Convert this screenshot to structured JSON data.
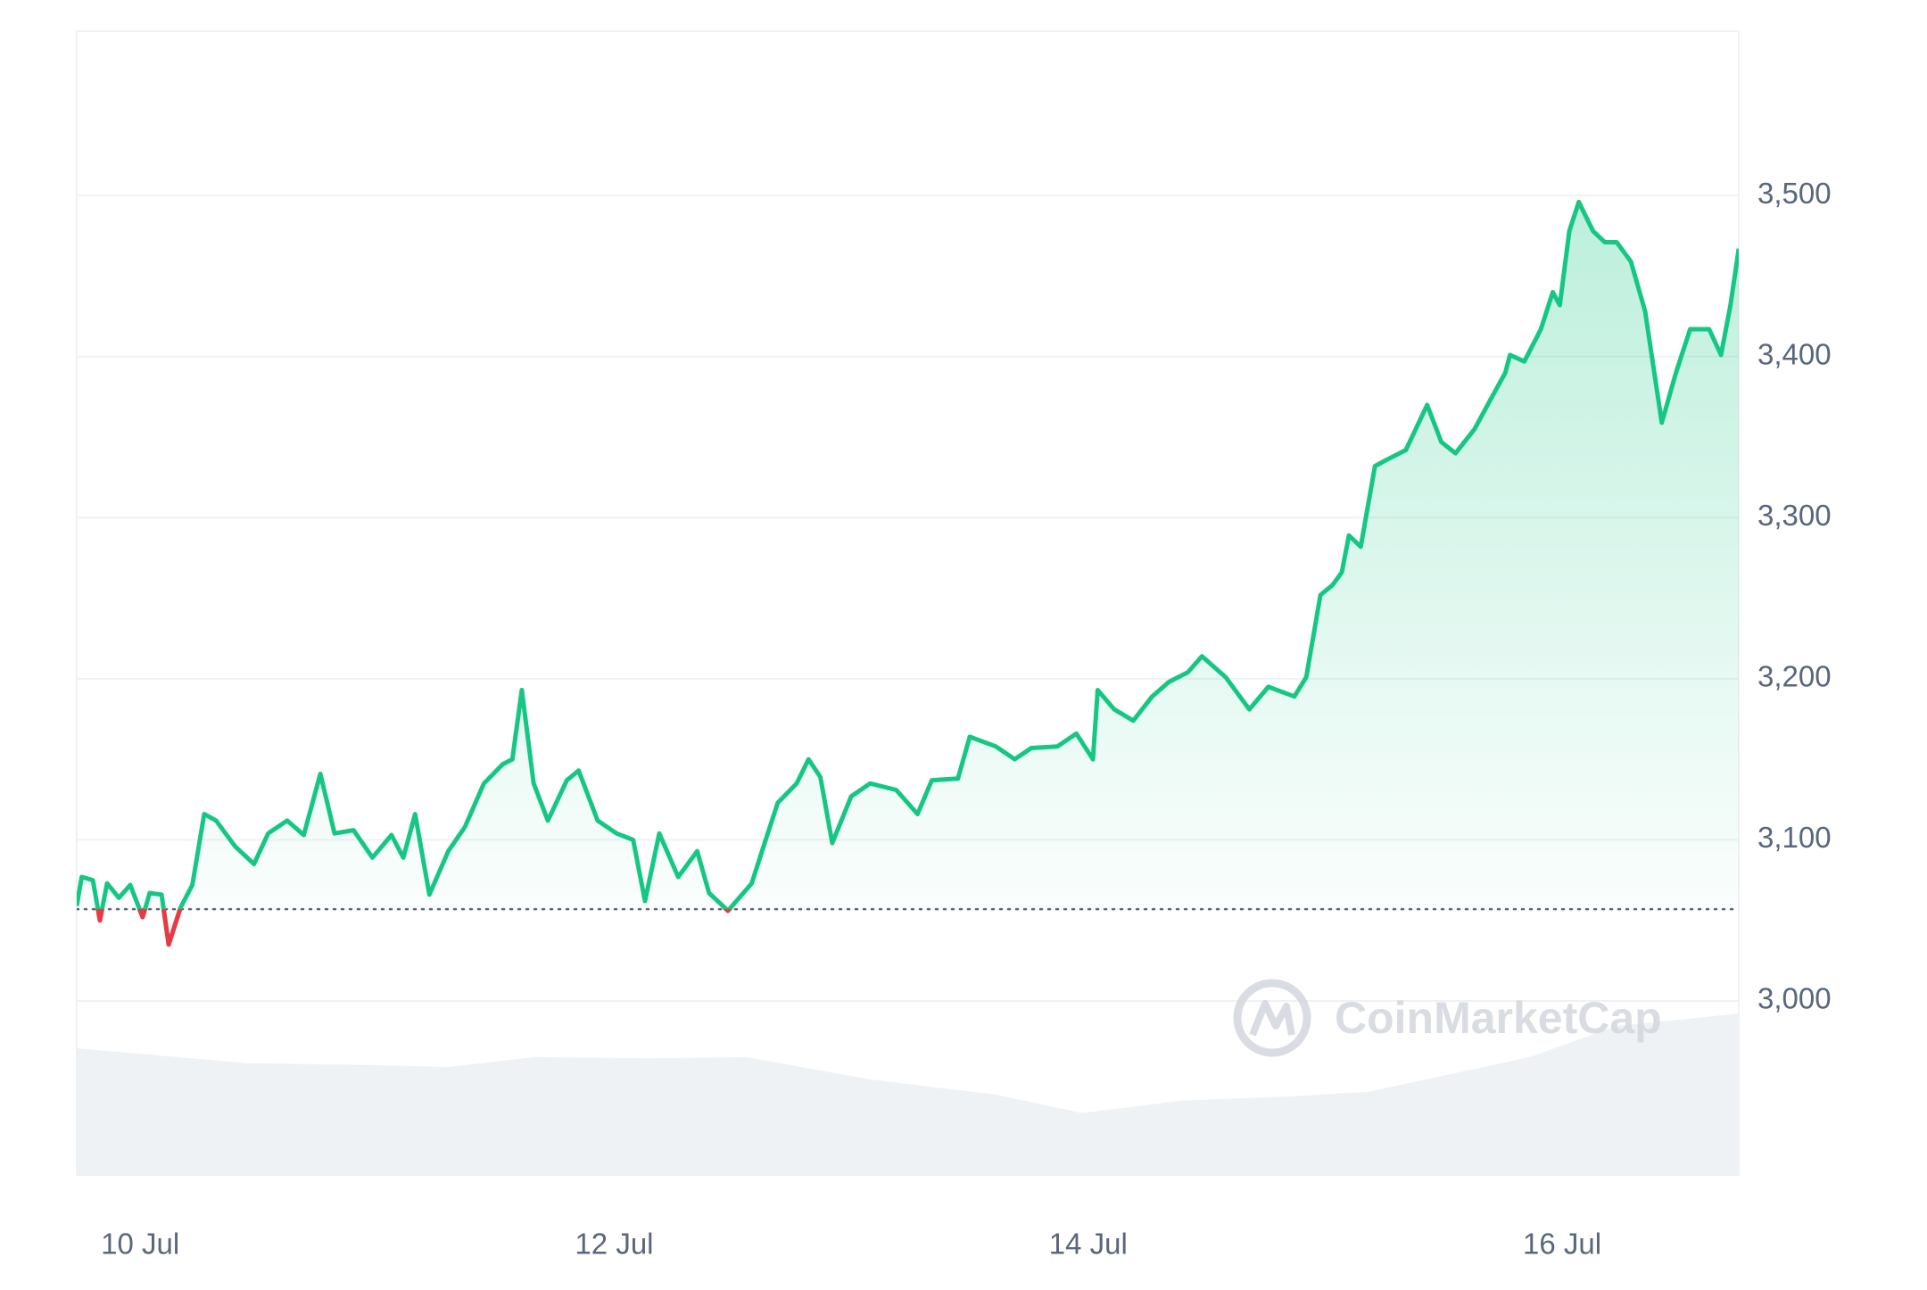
{
  "chart_data": {
    "type": "line",
    "watermark": "CoinMarketCap",
    "x": [
      9.732,
      9.753,
      9.8,
      9.83,
      9.86,
      9.91,
      9.958,
      10.01,
      10.04,
      10.09,
      10.12,
      10.17,
      10.22,
      10.27,
      10.32,
      10.4,
      10.48,
      10.54,
      10.62,
      10.69,
      10.76,
      10.82,
      10.9,
      10.98,
      11.06,
      11.11,
      11.16,
      11.22,
      11.3,
      11.37,
      11.45,
      11.53,
      11.57,
      11.61,
      11.66,
      11.72,
      11.8,
      11.85,
      11.93,
      12.01,
      12.08,
      12.13,
      12.19,
      12.27,
      12.35,
      12.4,
      12.48,
      12.58,
      12.63,
      12.69,
      12.77,
      12.82,
      12.87,
      12.92,
      13.0,
      13.08,
      13.19,
      13.28,
      13.34,
      13.45,
      13.5,
      13.61,
      13.69,
      13.76,
      13.87,
      13.95,
      14.02,
      14.04,
      14.11,
      14.19,
      14.27,
      14.34,
      14.42,
      14.48,
      14.58,
      14.68,
      14.76,
      14.87,
      14.92,
      14.98,
      15.03,
      15.07,
      15.1,
      15.15,
      15.21,
      15.26,
      15.34,
      15.43,
      15.49,
      15.55,
      15.63,
      15.7,
      15.76,
      15.78,
      15.84,
      15.91,
      15.96,
      15.99,
      16.03,
      16.07,
      16.13,
      16.18,
      16.23,
      16.29,
      16.35,
      16.42,
      16.48,
      16.54,
      16.62,
      16.67,
      16.71,
      16.745
    ],
    "series": [
      {
        "color": "#16c784",
        "down_color": "#ea3943",
        "values": [
          3059,
          3077,
          3075,
          3050,
          3073,
          3064,
          3072,
          3052,
          3067,
          3066,
          3035,
          3058,
          3072,
          3116,
          3112,
          3096,
          3085,
          3104,
          3112,
          3103,
          3141,
          3104,
          3106,
          3089,
          3103,
          3089,
          3116,
          3066,
          3093,
          3108,
          3135,
          3147,
          3150,
          3193,
          3135,
          3112,
          3137,
          3143,
          3112,
          3104,
          3100,
          3062,
          3104,
          3077,
          3093,
          3067,
          3056,
          3073,
          3096,
          3123,
          3135,
          3150,
          3139,
          3098,
          3127,
          3135,
          3131,
          3116,
          3137,
          3138,
          3164,
          3158,
          3150,
          3157,
          3158,
          3166,
          3150,
          3193,
          3181,
          3174,
          3189,
          3198,
          3204,
          3214,
          3201,
          3181,
          3195,
          3189,
          3201,
          3252,
          3258,
          3266,
          3289,
          3282,
          3332,
          3336,
          3342,
          3370,
          3347,
          3340,
          3355,
          3374,
          3390,
          3401,
          3397,
          3417,
          3440,
          3432,
          3478,
          3496,
          3478,
          3471,
          3471,
          3459,
          3428,
          3359,
          3390,
          3417,
          3417,
          3401,
          3432,
          3467
        ]
      }
    ],
    "baseline": 3057,
    "xlim": [
      9.732,
      16.745
    ],
    "xticks": [
      {
        "value": 10,
        "label": "10 Jul"
      },
      {
        "value": 12,
        "label": "12 Jul"
      },
      {
        "value": 14,
        "label": "14 Jul"
      },
      {
        "value": 16,
        "label": "16 Jul"
      }
    ],
    "ylim": [
      2892,
      3602
    ],
    "yticks": [
      {
        "value": 3000,
        "label": "3,000"
      },
      {
        "value": 3100,
        "label": "3,100"
      },
      {
        "value": 3200,
        "label": "3,200"
      },
      {
        "value": 3300,
        "label": "3,300"
      },
      {
        "value": 3400,
        "label": "3,400"
      },
      {
        "value": 3500,
        "label": "3,500"
      }
    ],
    "grid": true
  }
}
